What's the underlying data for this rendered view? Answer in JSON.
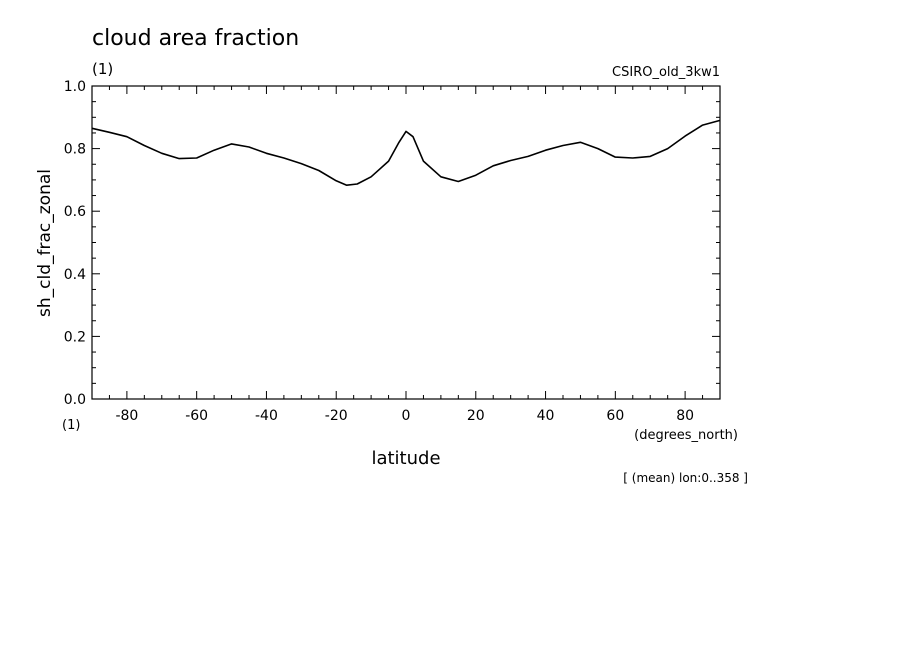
{
  "chart_data": {
    "type": "line",
    "title": "cloud area fraction",
    "units_label": "(1)",
    "dataset_label": "CSIRO_old_3kw1",
    "ylabel": "sh_cld_frac_zonal",
    "y_units": "(1)",
    "xlabel": "latitude",
    "x_units": "(degrees_north)",
    "footnote": "[ (mean) lon:0..358 ]",
    "xlim": [
      -90,
      90
    ],
    "ylim": [
      0,
      1
    ],
    "x_ticks": [
      -80,
      -60,
      -40,
      -20,
      0,
      20,
      40,
      60,
      80
    ],
    "x_tick_labels": [
      "-80",
      "-60",
      "-40",
      "-20",
      "0",
      "20",
      "40",
      "60",
      "80"
    ],
    "y_ticks": [
      0,
      0.2,
      0.4,
      0.6,
      0.8,
      1.0
    ],
    "y_tick_labels": [
      "0.0",
      "0.2",
      "0.4",
      "0.6",
      "0.8",
      "1.0"
    ],
    "grid": false,
    "series": [
      {
        "x": [
          -90,
          -85,
          -80,
          -75,
          -70,
          -65,
          -60,
          -55,
          -50,
          -45,
          -40,
          -35,
          -30,
          -25,
          -20,
          -17,
          -14,
          -10,
          -5,
          -2,
          0,
          2,
          5,
          10,
          15,
          20,
          25,
          30,
          35,
          40,
          45,
          50,
          55,
          60,
          65,
          70,
          75,
          80,
          85,
          90
        ],
        "y": [
          0.865,
          0.852,
          0.838,
          0.81,
          0.785,
          0.768,
          0.77,
          0.795,
          0.815,
          0.805,
          0.785,
          0.77,
          0.752,
          0.73,
          0.697,
          0.683,
          0.687,
          0.71,
          0.76,
          0.82,
          0.855,
          0.838,
          0.76,
          0.71,
          0.695,
          0.715,
          0.745,
          0.762,
          0.775,
          0.795,
          0.81,
          0.82,
          0.8,
          0.773,
          0.77,
          0.775,
          0.8,
          0.84,
          0.875,
          0.89
        ]
      }
    ]
  }
}
